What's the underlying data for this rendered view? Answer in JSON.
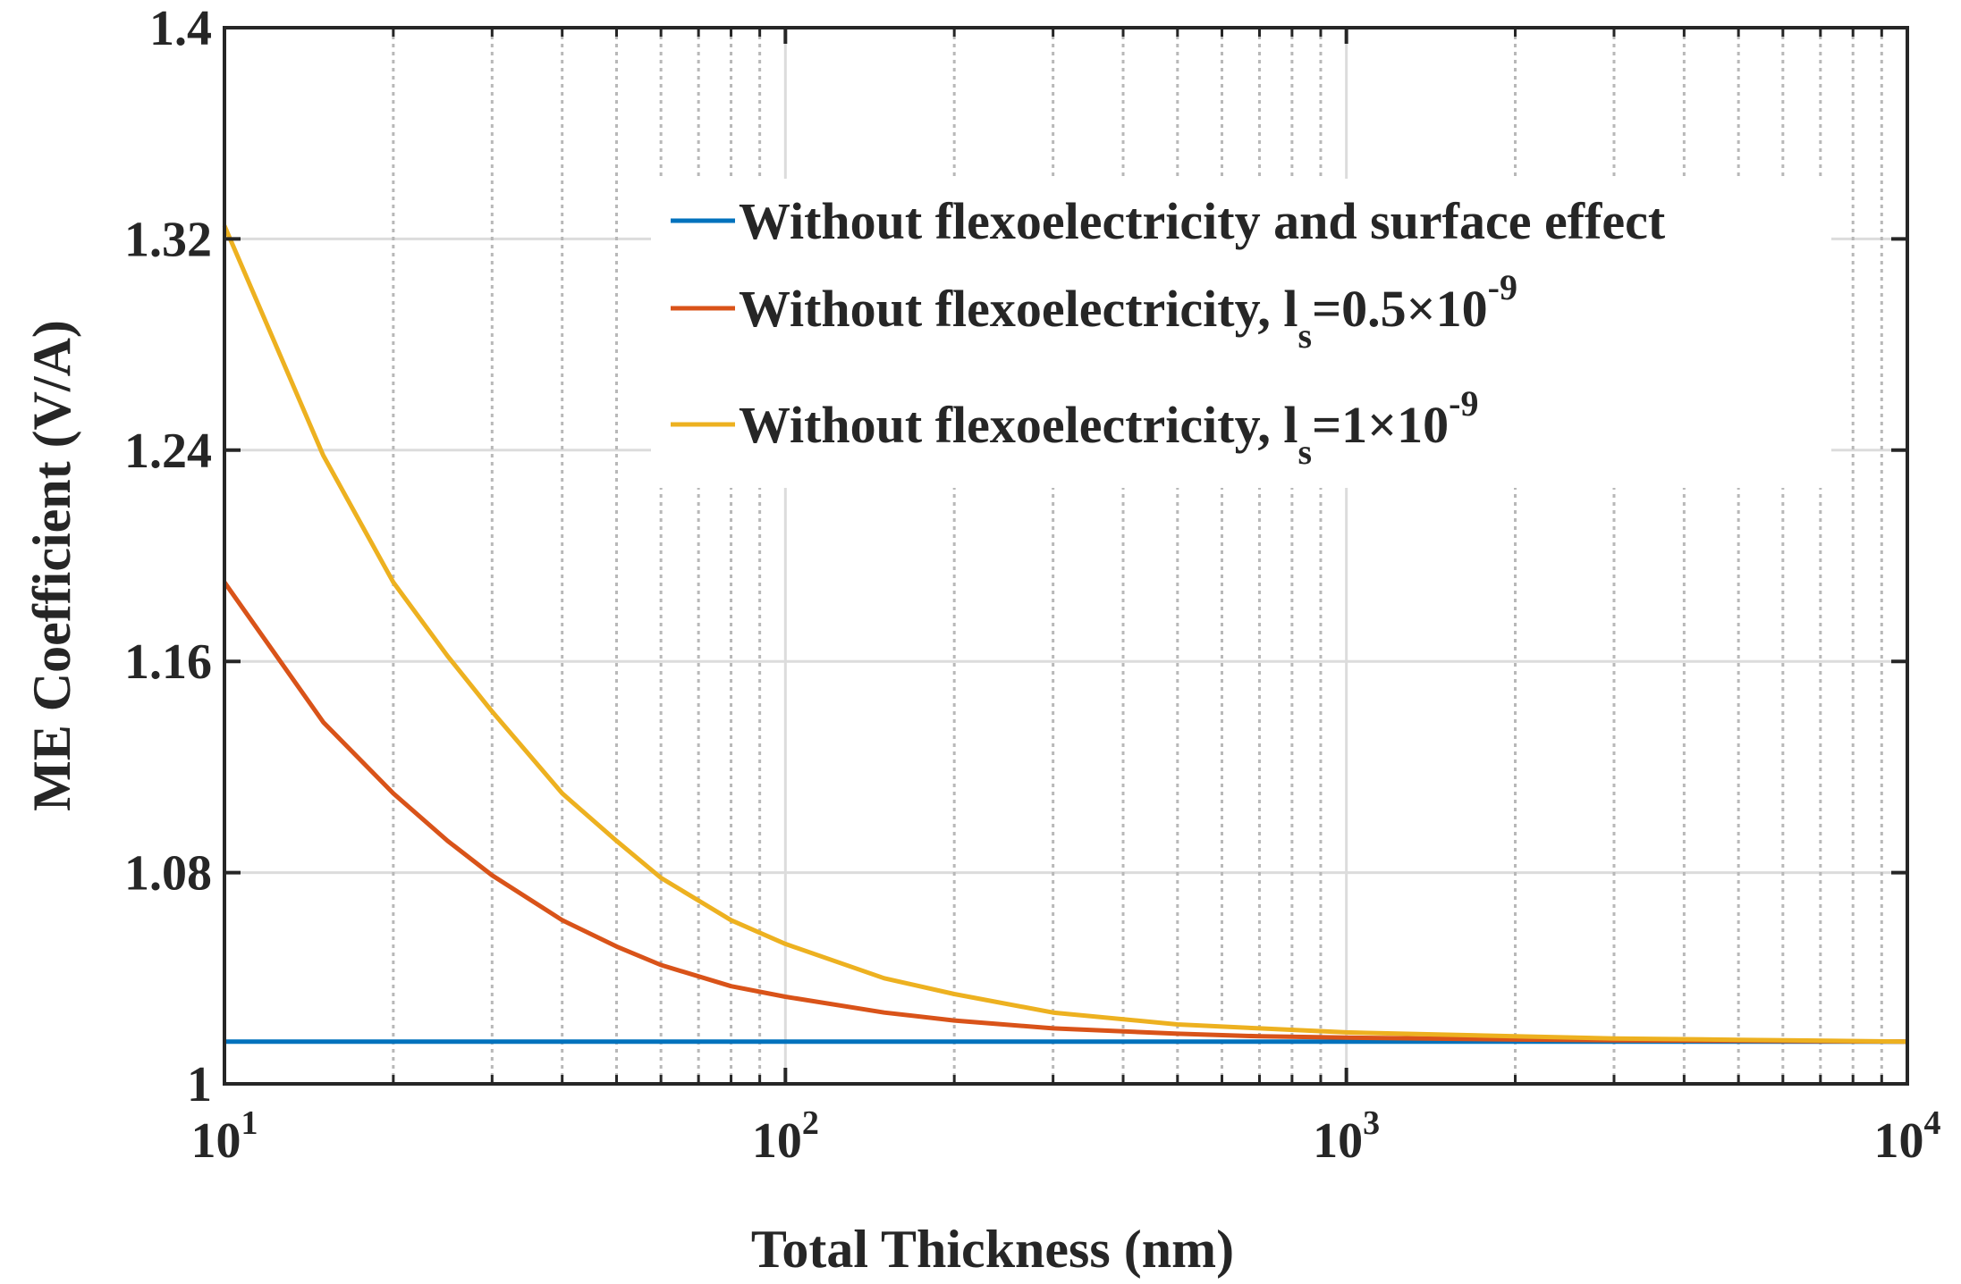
{
  "chart_data": {
    "type": "line",
    "xscale": "log",
    "xlim": [
      10,
      10000
    ],
    "ylim": [
      1.0,
      1.4
    ],
    "xlabel": "Total Thickness (nm)",
    "ylabel": "ME Coefficient (V/A)",
    "x_ticks": [
      {
        "value": 10,
        "base": "10",
        "exp": "1"
      },
      {
        "value": 100,
        "base": "10",
        "exp": "2"
      },
      {
        "value": 1000,
        "base": "10",
        "exp": "3"
      },
      {
        "value": 10000,
        "base": "10",
        "exp": "4"
      }
    ],
    "y_ticks": [
      {
        "value": 1.0,
        "label": "1"
      },
      {
        "value": 1.08,
        "label": "1.08"
      },
      {
        "value": 1.16,
        "label": "1.16"
      },
      {
        "value": 1.24,
        "label": "1.24"
      },
      {
        "value": 1.32,
        "label": "1.32"
      },
      {
        "value": 1.4,
        "label": "1.4"
      }
    ],
    "grid": true,
    "legend_position": "top-right",
    "x": [
      10,
      15,
      20,
      25,
      30,
      40,
      50,
      60,
      80,
      100,
      150,
      200,
      300,
      500,
      700,
      1000,
      2000,
      3000,
      5000,
      10000
    ],
    "series": [
      {
        "name": "Without flexoelectricity and surface effect",
        "legend_main": "Without flexoelectricity and surface effect",
        "legend_sub": "",
        "legend_tail": "",
        "legend_exp": "",
        "color": "#0072BD",
        "values": [
          1.016,
          1.016,
          1.016,
          1.016,
          1.016,
          1.016,
          1.016,
          1.016,
          1.016,
          1.016,
          1.016,
          1.016,
          1.016,
          1.016,
          1.016,
          1.016,
          1.016,
          1.016,
          1.016,
          1.016
        ]
      },
      {
        "name": "Without flexoelectricity, ls=0.5×10-9",
        "legend_main": "Without flexoelectricity, l",
        "legend_sub": "s",
        "legend_tail": "=0.5×10",
        "legend_exp": "-9",
        "color": "#D95319",
        "values": [
          1.19,
          1.137,
          1.11,
          1.092,
          1.079,
          1.062,
          1.052,
          1.045,
          1.037,
          1.033,
          1.027,
          1.024,
          1.021,
          1.019,
          1.018,
          1.0175,
          1.0168,
          1.0165,
          1.0163,
          1.016
        ]
      },
      {
        "name": "Without flexoelectricity, ls=1×10-9",
        "legend_main": "Without flexoelectricity, l",
        "legend_sub": "s",
        "legend_tail": "=1×10",
        "legend_exp": "-9",
        "color": "#EDB120",
        "values": [
          1.325,
          1.238,
          1.19,
          1.162,
          1.141,
          1.11,
          1.092,
          1.078,
          1.062,
          1.053,
          1.04,
          1.034,
          1.027,
          1.0225,
          1.021,
          1.0195,
          1.018,
          1.0172,
          1.0167,
          1.016
        ]
      }
    ]
  }
}
